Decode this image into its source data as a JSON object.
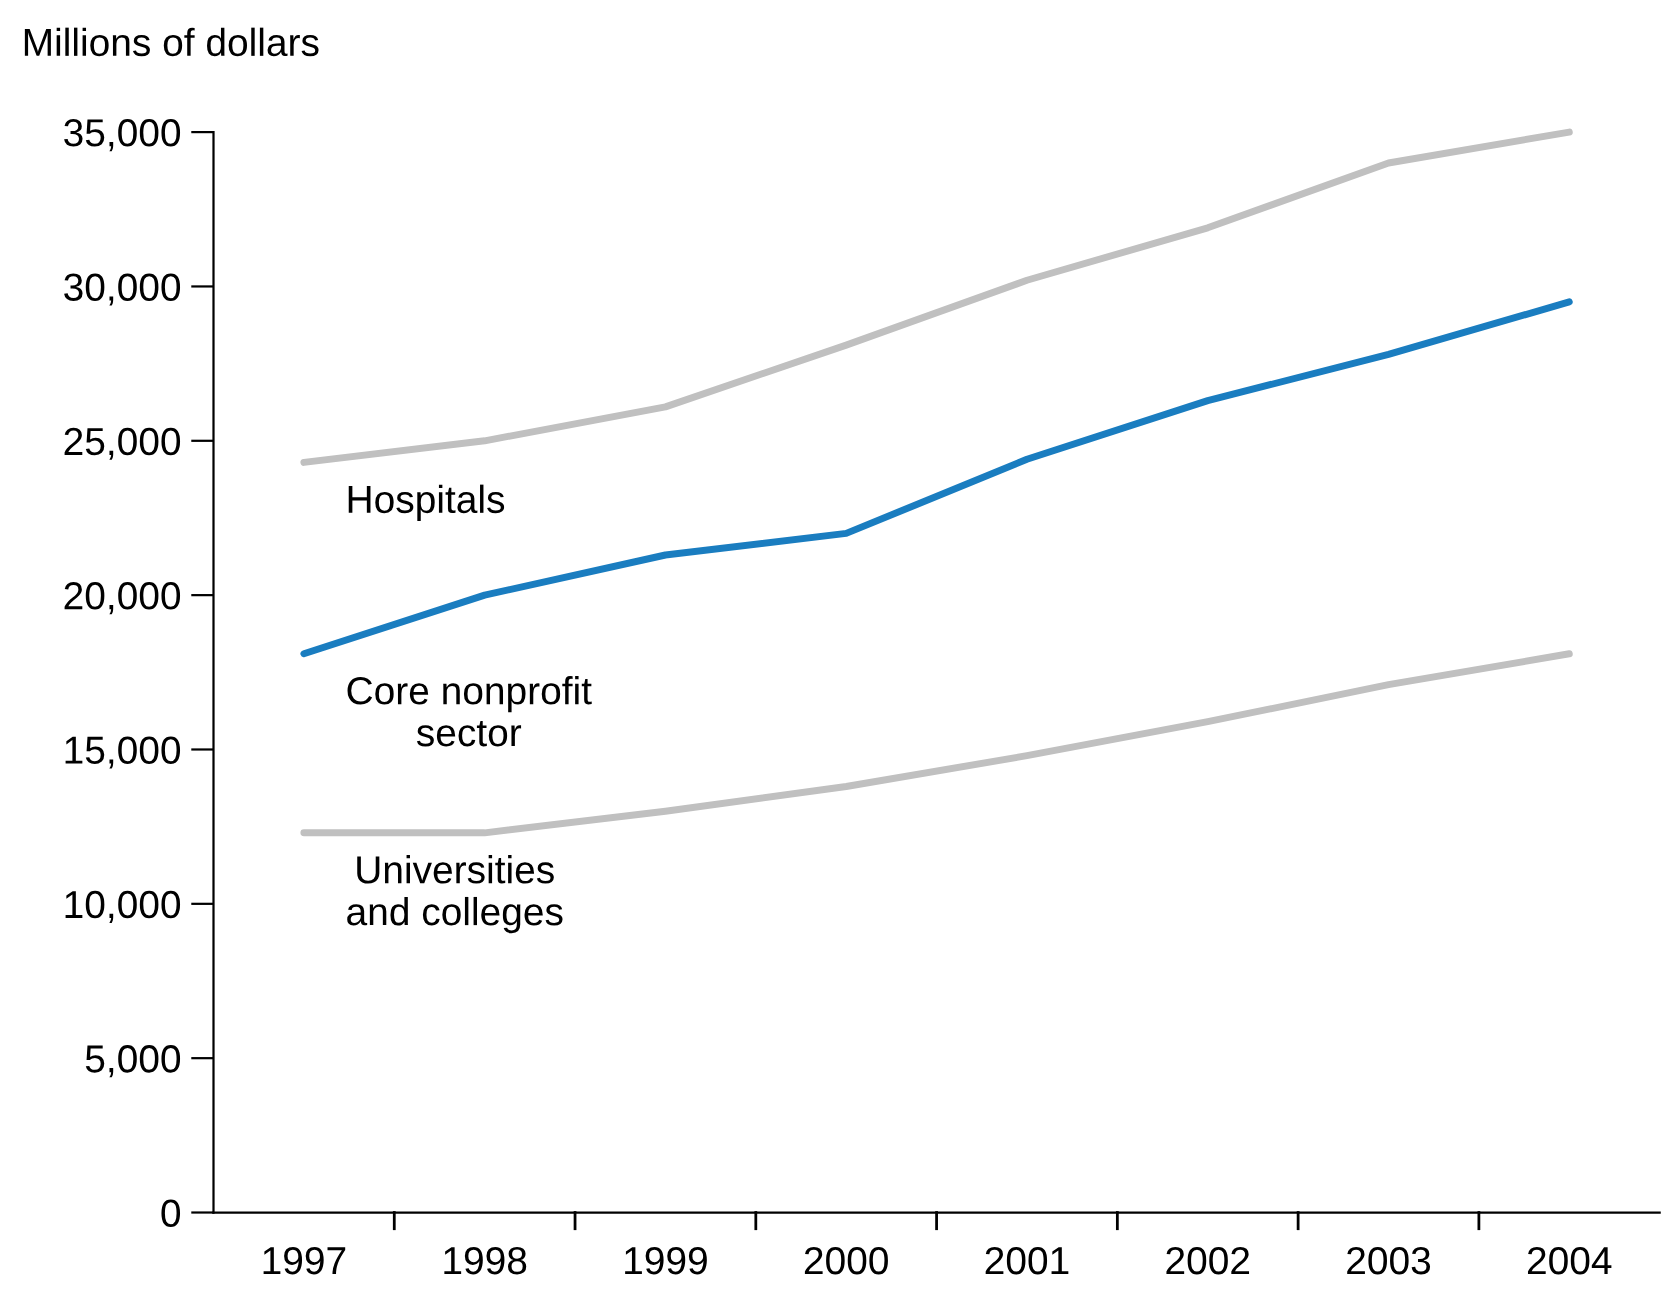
{
  "chart_data": {
    "type": "line",
    "ylabel": "Millions of dollars",
    "categories": [
      "1997",
      "1998",
      "1999",
      "2000",
      "2001",
      "2002",
      "2003",
      "2004"
    ],
    "series": [
      {
        "name": "Hospitals",
        "color": "#c0c0c0",
        "values": [
          24300,
          25000,
          26100,
          28100,
          30200,
          31900,
          34000,
          35000
        ]
      },
      {
        "name": "Core nonprofit\nsector",
        "color": "#1a7dc0",
        "values": [
          18100,
          20000,
          21300,
          22000,
          24400,
          26300,
          27800,
          29500
        ]
      },
      {
        "name": "Universities\nand colleges",
        "color": "#c0c0c0",
        "values": [
          12300,
          12300,
          13000,
          13800,
          14800,
          15900,
          17100,
          18100
        ]
      }
    ],
    "ylim": [
      0,
      35000
    ],
    "yticks": [
      0,
      {
        "value": 5000,
        "label": "5,000"
      },
      {
        "value": 10000,
        "label": "10,000"
      },
      {
        "value": 15000,
        "label": "15,000"
      },
      {
        "value": 20000,
        "label": "20,000"
      },
      {
        "value": 25000,
        "label": "25,000"
      },
      {
        "value": 30000,
        "label": "30,000"
      },
      {
        "value": 35000,
        "label": "35,000"
      }
    ],
    "grid": false,
    "legend": false,
    "marker": "none",
    "line_style": "solid"
  }
}
